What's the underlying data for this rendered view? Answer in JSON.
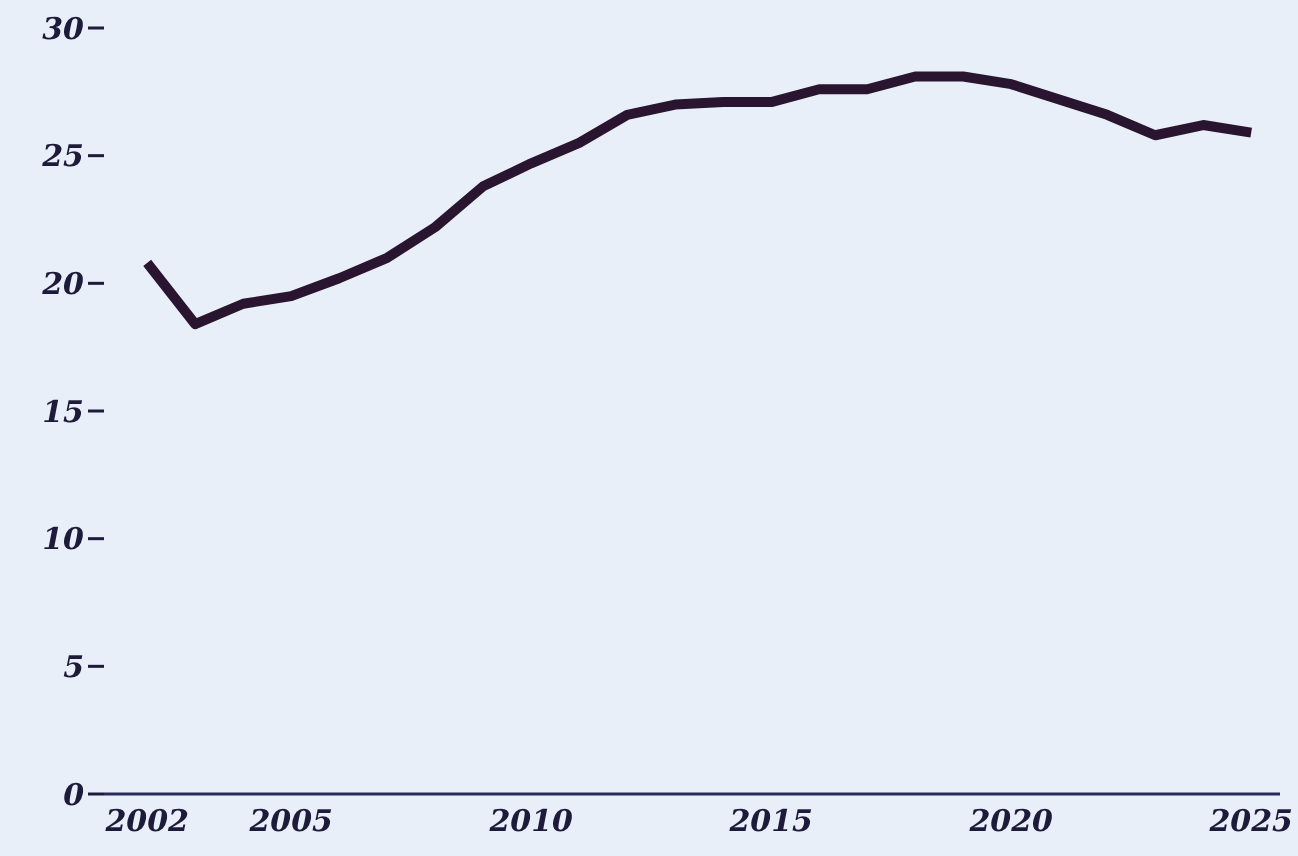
{
  "chart_data": {
    "type": "line",
    "x": [
      2002,
      2003,
      2004,
      2005,
      2006,
      2007,
      2008,
      2009,
      2010,
      2011,
      2012,
      2013,
      2014,
      2015,
      2016,
      2017,
      2018,
      2019,
      2020,
      2021,
      2022,
      2023,
      2024,
      2025
    ],
    "series": [
      {
        "color": "#2a1530",
        "values": [
          20.8,
          18.4,
          19.2,
          19.5,
          20.2,
          21.0,
          22.2,
          23.8,
          24.7,
          25.5,
          26.6,
          27.0,
          27.1,
          27.1,
          27.6,
          27.6,
          28.1,
          28.1,
          27.8,
          27.2,
          26.6,
          25.8,
          26.2,
          25.9
        ]
      }
    ],
    "xlim": [
      2001.1,
      2025.6
    ],
    "xticks": [
      2002,
      2005,
      2010,
      2015,
      2020,
      2025
    ],
    "ylim": [
      0,
      30
    ],
    "yticks": [
      0,
      5,
      10,
      15,
      20,
      25,
      30
    ],
    "grid": false,
    "legend": false,
    "marker": "none",
    "line_style": "solid"
  }
}
